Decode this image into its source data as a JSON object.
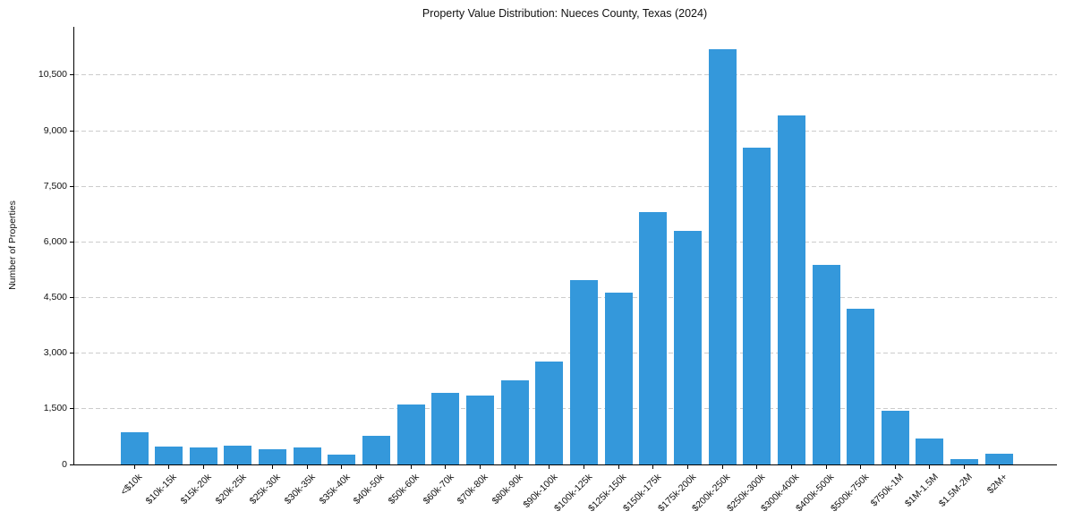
{
  "chart_data": {
    "type": "bar",
    "title": "Property Value Distribution: Nueces County, Texas (2024)",
    "xlabel": "",
    "ylabel": "Number of Properties",
    "categories": [
      "<$10k",
      "$10k-15k",
      "$15k-20k",
      "$20k-25k",
      "$25k-30k",
      "$30k-35k",
      "$35k-40k",
      "$40k-50k",
      "$50k-60k",
      "$60k-70k",
      "$70k-80k",
      "$80k-90k",
      "$90k-100k",
      "$100k-125k",
      "$125k-150k",
      "$150k-175k",
      "$175k-200k",
      "$200k-250k",
      "$250k-300k",
      "$300k-400k",
      "$400k-500k",
      "$500k-750k",
      "$750k-1M",
      "$1M-1.5M",
      "$1.5M-2M",
      "$2M+"
    ],
    "values": [
      880,
      490,
      470,
      500,
      400,
      450,
      275,
      780,
      1620,
      1920,
      1860,
      2260,
      2780,
      4980,
      4630,
      6800,
      6300,
      11200,
      8550,
      9400,
      5370,
      4190,
      1450,
      700,
      140,
      300
    ],
    "ylim": [
      0,
      11800
    ],
    "yticks": [
      0,
      1500,
      3000,
      4500,
      6000,
      7500,
      9000,
      10500
    ],
    "ytick_labels": [
      "0",
      "1,500",
      "3,000",
      "4,500",
      "6,000",
      "7,500",
      "9,000",
      "10,500"
    ],
    "grid": "horizontal-dashed",
    "legend": "none",
    "bar_color": "#3498db",
    "grid_color": "#cccccc",
    "axis_color": "#000000"
  }
}
